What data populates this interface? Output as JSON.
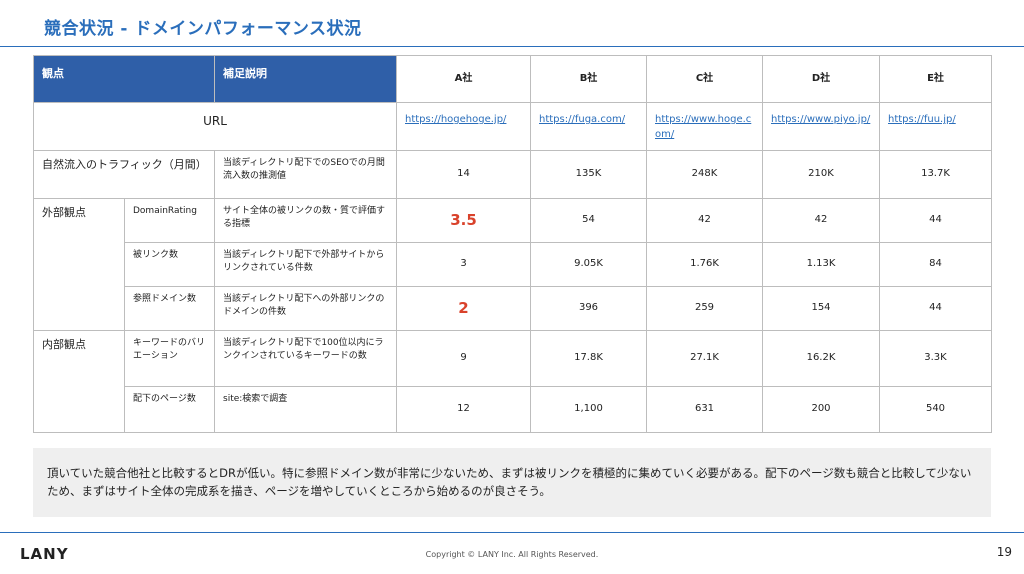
{
  "slide": {
    "title": "競合状況 - ドメインパフォーマンス状況",
    "summary": "頂いていた競合他社と比較するとDRが低い。特に参照ドメイン数が非常に少ないため、まずは被リンクを積極的に集めていく必要がある。配下のページ数も競合と比較して少ないため、まずはサイト全体の完成系を描き、ページを増やしていくところから始めるのが良さそう。",
    "logo": "LANY",
    "copyright": "Copyright © LANY Inc. All Rights Reserved.",
    "page_number": "19"
  },
  "table": {
    "header": {
      "viewpoint": "観点",
      "note": "補足説明",
      "companies": [
        "A社",
        "B社",
        "C社",
        "D社",
        "E社"
      ]
    },
    "url_row": {
      "label": "URL",
      "values": [
        "https://hogehoge.jp/",
        "https://fuga.com/",
        "https://www.hoge.com/",
        "https://www.piyo.jp/",
        "https://fuu.jp/"
      ]
    },
    "traffic_row": {
      "label": "自然流入のトラフィック（月間）",
      "note": "当該ディレクトリ配下でのSEOでの月間流入数の推測値",
      "values": [
        "14",
        "135K",
        "248K",
        "210K",
        "13.7K"
      ]
    },
    "external": {
      "label": "外部観点",
      "rows": [
        {
          "metric": "DomainRating",
          "note": "サイト全体の被リンクの数・質で評価する指標",
          "values": [
            "3.5",
            "54",
            "42",
            "42",
            "44"
          ]
        },
        {
          "metric": "被リンク数",
          "note": "当該ディレクトリ配下で外部サイトからリンクされている件数",
          "values": [
            "3",
            "9.05K",
            "1.76K",
            "1.13K",
            "84"
          ]
        },
        {
          "metric": "参照ドメイン数",
          "note": "当該ディレクトリ配下への外部リンクのドメインの件数",
          "values": [
            "2",
            "396",
            "259",
            "154",
            "44"
          ]
        }
      ]
    },
    "internal": {
      "label": "内部観点",
      "rows": [
        {
          "metric": "キーワードのバリエーション",
          "note": "当該ディレクトリ配下で100位以内にランクインされているキーワードの数",
          "values": [
            "9",
            "17.8K",
            "27.1K",
            "16.2K",
            "3.3K"
          ]
        },
        {
          "metric": "配下のページ数",
          "note": "site:検索で調査",
          "values": [
            "12",
            "1,100",
            "631",
            "200",
            "540"
          ]
        }
      ]
    },
    "highlight_color": "#d9422b",
    "header_color": "#2f5fa8"
  }
}
